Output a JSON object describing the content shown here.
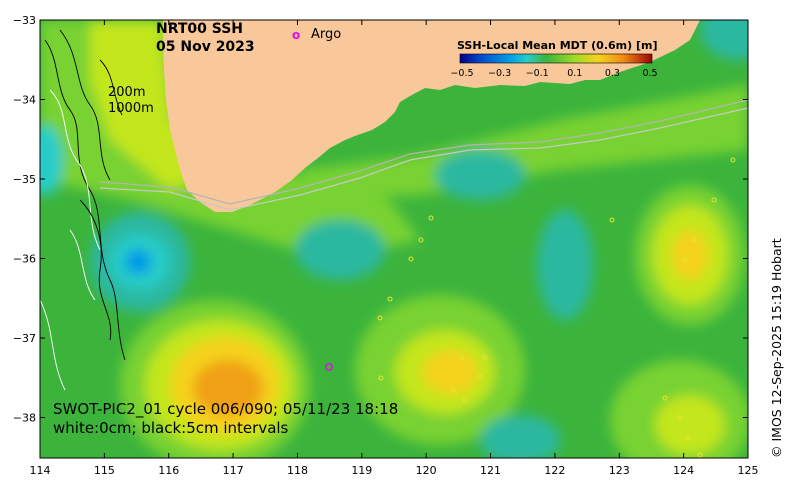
{
  "title": {
    "product": "NRT00 SSH",
    "date": "05 Nov 2023"
  },
  "legend": {
    "argo_symbol": "o",
    "argo_label": "Argo",
    "argo_color": "#e010e0"
  },
  "isobaths": {
    "shallow": "200m",
    "deep": "1000m"
  },
  "colorbar": {
    "title": "SSH-Local Mean MDT (0.6m) [m]",
    "ticks": [
      "−0.5",
      "−0.3",
      "−0.1",
      "0.1",
      "0.3",
      "0.5"
    ],
    "colors": [
      "#00008c",
      "#0046c8",
      "#009be6",
      "#28cdc8",
      "#46c88c",
      "#3cb43c",
      "#78d232",
      "#c3e61e",
      "#f5d21e",
      "#f08c14",
      "#d2460a",
      "#a0000a"
    ]
  },
  "axes": {
    "x_ticks": [
      "114",
      "115",
      "116",
      "117",
      "118",
      "119",
      "120",
      "121",
      "122",
      "123",
      "124",
      "125"
    ],
    "y_ticks": [
      "−33",
      "−34",
      "−35",
      "−36",
      "−37",
      "−38"
    ]
  },
  "swot_note": {
    "line1": "SWOT-PIC2_01 cycle 006/090; 05/11/23 18:18",
    "line2": "white:0cm; black:5cm intervals"
  },
  "credit": "© IMOS 12-Sep-2025 15:19 Hobart",
  "colors": {
    "land": "#f9c89a",
    "ocean_base": "#3cb43c",
    "positive": "#a0dc28",
    "warm": "#f0a014",
    "negative": "#2ab8a0"
  }
}
